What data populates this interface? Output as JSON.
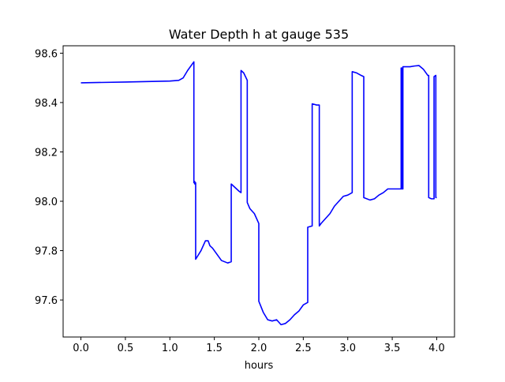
{
  "chart_data": {
    "type": "line",
    "title": "Water Depth h at gauge 535",
    "xlabel": "hours",
    "ylabel": "",
    "xlim": [
      -0.2,
      4.2
    ],
    "ylim": [
      97.45,
      98.63
    ],
    "xticks": [
      0.0,
      0.5,
      1.0,
      1.5,
      2.0,
      2.5,
      3.0,
      3.5,
      4.0
    ],
    "xtick_labels": [
      "0.0",
      "0.5",
      "1.0",
      "1.5",
      "2.0",
      "2.5",
      "3.0",
      "3.5",
      "4.0"
    ],
    "yticks": [
      97.6,
      97.8,
      98.0,
      98.2,
      98.4,
      98.6
    ],
    "ytick_labels": [
      "97.6",
      "97.8",
      "98.0",
      "98.2",
      "98.4",
      "98.6"
    ],
    "grid": false,
    "legend": "none",
    "series": [
      {
        "color": "#0000ff",
        "x": [
          0.0,
          0.5,
          1.0,
          1.1,
          1.15,
          1.2,
          1.27,
          1.27,
          1.28,
          1.28,
          1.29,
          1.29,
          1.35,
          1.4,
          1.43,
          1.45,
          1.48,
          1.52,
          1.58,
          1.65,
          1.69,
          1.69,
          1.72,
          1.78,
          1.8,
          1.8,
          1.83,
          1.87,
          1.87,
          1.9,
          1.95,
          2.0,
          2.0,
          2.05,
          2.1,
          2.15,
          2.2,
          2.25,
          2.3,
          2.35,
          2.4,
          2.45,
          2.5,
          2.55,
          2.55,
          2.6,
          2.6,
          2.65,
          2.68,
          2.68,
          2.7,
          2.75,
          2.8,
          2.85,
          2.9,
          2.95,
          3.0,
          3.05,
          3.05,
          3.1,
          3.15,
          3.18,
          3.18,
          3.25,
          3.3,
          3.35,
          3.4,
          3.45,
          3.5,
          3.55,
          3.6,
          3.6,
          3.61,
          3.61,
          3.62,
          3.62,
          3.7,
          3.75,
          3.8,
          3.85,
          3.9,
          3.91,
          3.91,
          3.94,
          3.97,
          3.97,
          3.99,
          3.99,
          4.0
        ],
        "y": [
          98.48,
          98.483,
          98.487,
          98.49,
          98.5,
          98.53,
          98.565,
          98.075,
          98.08,
          98.07,
          98.075,
          97.765,
          97.8,
          97.84,
          97.84,
          97.82,
          97.81,
          97.79,
          97.76,
          97.75,
          97.755,
          98.07,
          98.06,
          98.04,
          98.035,
          98.53,
          98.52,
          98.49,
          97.995,
          97.97,
          97.95,
          97.91,
          97.595,
          97.55,
          97.52,
          97.515,
          97.52,
          97.5,
          97.505,
          97.52,
          97.54,
          97.555,
          97.58,
          97.59,
          97.895,
          97.9,
          98.395,
          98.39,
          98.39,
          97.9,
          97.91,
          97.93,
          97.95,
          97.98,
          98.0,
          98.02,
          98.025,
          98.035,
          98.525,
          98.52,
          98.51,
          98.505,
          98.015,
          98.005,
          98.01,
          98.025,
          98.035,
          98.05,
          98.05,
          98.05,
          98.05,
          98.54,
          98.54,
          98.05,
          98.05,
          98.545,
          98.545,
          98.548,
          98.55,
          98.535,
          98.51,
          98.51,
          98.015,
          98.01,
          98.01,
          98.505,
          98.51,
          98.015,
          98.015
        ]
      }
    ]
  }
}
